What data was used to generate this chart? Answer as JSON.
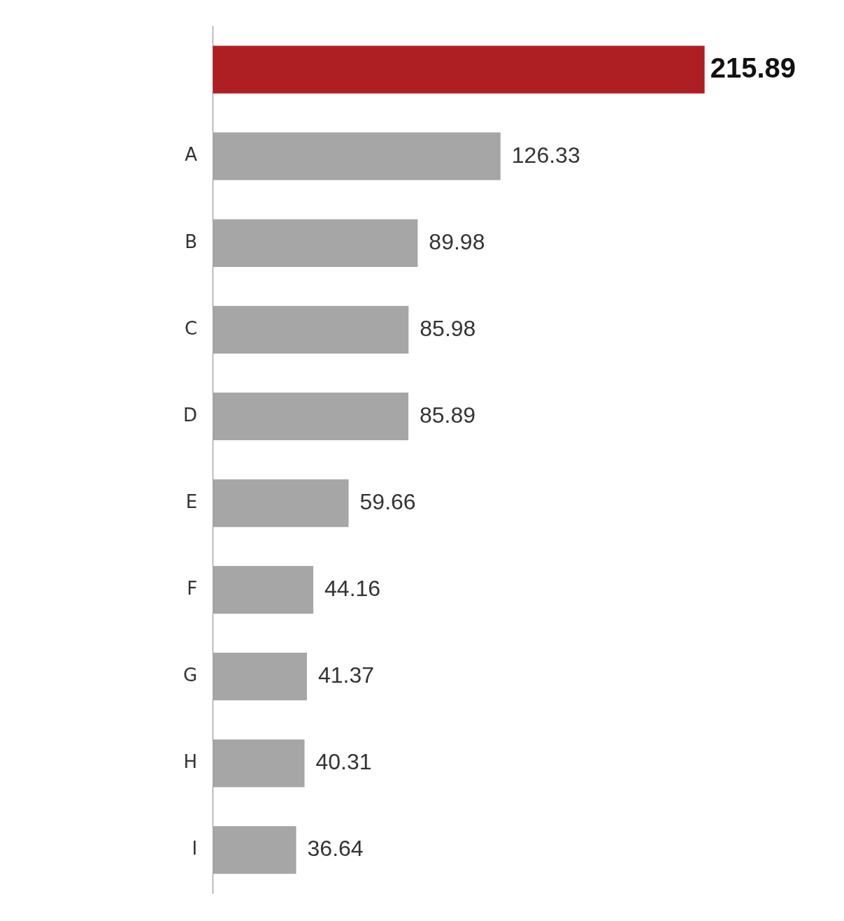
{
  "chart_data": {
    "type": "bar",
    "orientation": "horizontal",
    "categories": [
      null,
      "A",
      "B",
      "C",
      "D",
      "E",
      "F",
      "G",
      "H",
      "I"
    ],
    "values": [
      215.89,
      126.33,
      89.98,
      85.98,
      85.89,
      59.66,
      44.16,
      41.37,
      40.31,
      36.64
    ],
    "colors": [
      "#ae1f24",
      "#a6a6a6",
      "#a6a6a6",
      "#a6a6a6",
      "#a6a6a6",
      "#a6a6a6",
      "#a6a6a6",
      "#a6a6a6",
      "#a6a6a6",
      "#a6a6a6"
    ],
    "xlim": [
      0,
      216
    ],
    "data_labels": true,
    "tick_labels": "y"
  }
}
